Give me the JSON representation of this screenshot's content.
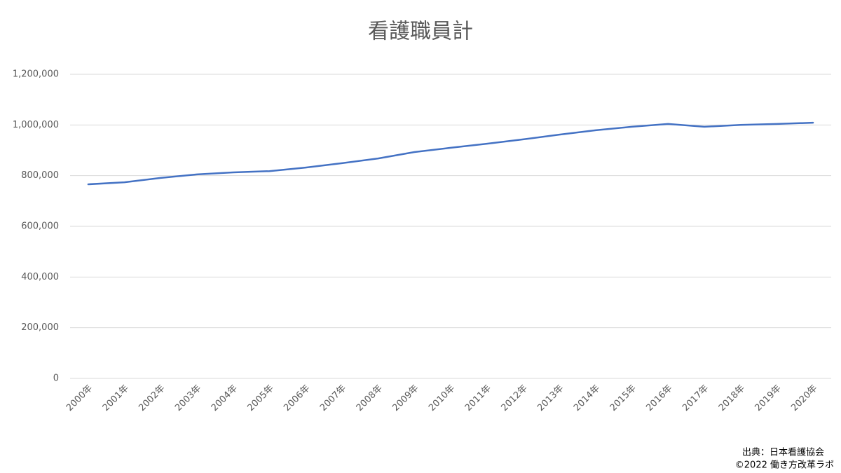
{
  "chart_data": {
    "type": "line",
    "title": "看護職員計",
    "categories": [
      "2000年",
      "2001年",
      "2002年",
      "2003年",
      "2004年",
      "2005年",
      "2006年",
      "2007年",
      "2008年",
      "2009年",
      "2010年",
      "2011年",
      "2012年",
      "2013年",
      "2014年",
      "2015年",
      "2016年",
      "2017年",
      "2018年",
      "2019年",
      "2020年"
    ],
    "series": [
      {
        "name": "看護職員計",
        "color": "#4472c4",
        "values": [
          766000,
          774000,
          791000,
          805000,
          813000,
          818000,
          832000,
          849000,
          868000,
          893000,
          910000,
          926000,
          943000,
          962000,
          979000,
          993000,
          1004000,
          993000,
          1000000,
          1004000,
          1009000
        ]
      }
    ],
    "ylim": [
      0,
      1200000
    ],
    "yticks": [
      0,
      {
        "value": 200000,
        "label": "200,000"
      },
      {
        "value": 400000,
        "label": "400,000"
      },
      {
        "value": 600000,
        "label": "600,000"
      },
      {
        "value": 800000,
        "label": "800,000"
      },
      {
        "value": 1000000,
        "label": "1,000,000"
      },
      {
        "value": 1200000,
        "label": "1,200,000"
      }
    ],
    "grid": true,
    "notes": [
      "出典：日本看護協会",
      "©2022 働き方改革ラボ"
    ]
  }
}
